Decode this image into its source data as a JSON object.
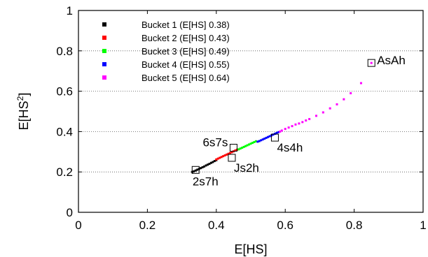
{
  "chart_data": {
    "type": "scatter",
    "title": "",
    "xlabel": "E[HS]",
    "ylabel": "E[HS",
    "ylabel_superscript": "2",
    "ylabel_suffix": "]",
    "xlim": [
      0,
      1
    ],
    "ylim": [
      0,
      1
    ],
    "xticks": [
      "0",
      "0.2",
      "0.4",
      "0.6",
      "0.8",
      "1"
    ],
    "yticks": [
      "0",
      "0.2",
      "0.4",
      "0.6",
      "0.8",
      "1"
    ],
    "grid": "horizontal dotted",
    "legend_position": "top-left",
    "series": [
      {
        "name": "Bucket 1 (E[HS] 0.38)",
        "color": "#000000",
        "x": [
          0.33,
          0.335,
          0.34,
          0.345,
          0.35,
          0.355,
          0.36,
          0.365,
          0.37,
          0.375,
          0.38,
          0.385,
          0.39,
          0.395,
          0.4
        ],
        "y": [
          0.2,
          0.203,
          0.207,
          0.211,
          0.215,
          0.219,
          0.223,
          0.227,
          0.232,
          0.236,
          0.24,
          0.245,
          0.249,
          0.254,
          0.258
        ]
      },
      {
        "name": "Bucket 2 (E[HS] 0.43)",
        "color": "#ff0000",
        "x": [
          0.4,
          0.405,
          0.41,
          0.415,
          0.42,
          0.425,
          0.43,
          0.435,
          0.44,
          0.445,
          0.45,
          0.455,
          0.46
        ],
        "y": [
          0.262,
          0.266,
          0.27,
          0.274,
          0.278,
          0.282,
          0.286,
          0.29,
          0.294,
          0.298,
          0.302,
          0.306,
          0.31
        ]
      },
      {
        "name": "Bucket 3 (E[HS] 0.49)",
        "color": "#00ff00",
        "x": [
          0.465,
          0.47,
          0.475,
          0.48,
          0.485,
          0.49,
          0.495,
          0.5,
          0.505,
          0.51,
          0.515
        ],
        "y": [
          0.312,
          0.316,
          0.32,
          0.324,
          0.328,
          0.332,
          0.336,
          0.34,
          0.344,
          0.348,
          0.352
        ]
      },
      {
        "name": "Bucket 4 (E[HS] 0.55)",
        "color": "#0000ff",
        "x": [
          0.52,
          0.525,
          0.53,
          0.535,
          0.54,
          0.545,
          0.55,
          0.555,
          0.56,
          0.565,
          0.57,
          0.575,
          0.58
        ],
        "y": [
          0.35,
          0.353,
          0.357,
          0.361,
          0.365,
          0.369,
          0.373,
          0.377,
          0.381,
          0.385,
          0.389,
          0.393,
          0.397
        ]
      },
      {
        "name": "Bucket 5 (E[HS] 0.64)",
        "color": "#ff00ff",
        "x": [
          0.585,
          0.59,
          0.6,
          0.61,
          0.62,
          0.63,
          0.64,
          0.65,
          0.66,
          0.67,
          0.69,
          0.71,
          0.73,
          0.75,
          0.77,
          0.79,
          0.82,
          0.85
        ],
        "y": [
          0.4,
          0.405,
          0.413,
          0.42,
          0.427,
          0.435,
          0.44,
          0.447,
          0.455,
          0.462,
          0.478,
          0.495,
          0.515,
          0.535,
          0.56,
          0.59,
          0.64,
          0.74
        ]
      }
    ],
    "annotations": [
      {
        "label": "AsAh",
        "x": 0.85,
        "y": 0.74,
        "anchor": "right"
      },
      {
        "label": "6s7s",
        "x": 0.45,
        "y": 0.32,
        "anchor": "left"
      },
      {
        "label": "4s4h",
        "x": 0.57,
        "y": 0.37,
        "anchor": "below-right"
      },
      {
        "label": "Js2h",
        "x": 0.445,
        "y": 0.27,
        "anchor": "below-right"
      },
      {
        "label": "2s7h",
        "x": 0.34,
        "y": 0.21,
        "anchor": "below"
      }
    ]
  }
}
